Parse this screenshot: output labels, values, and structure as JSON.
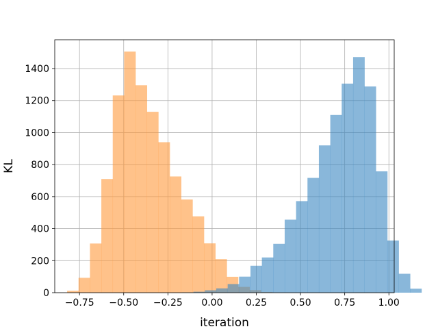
{
  "chart_data": {
    "type": "histogram",
    "title": "",
    "xlabel": "iteration",
    "ylabel": "KL",
    "xlim": [
      -0.89,
      1.03
    ],
    "ylim": [
      0,
      1580
    ],
    "grid": true,
    "legend": "none",
    "x_ticks": [
      -0.75,
      -0.5,
      -0.25,
      0.0,
      0.25,
      0.5,
      0.75,
      1.0
    ],
    "x_tick_labels": [
      "−0.75",
      "−0.50",
      "−0.25",
      "0.00",
      "0.25",
      "0.50",
      "0.75",
      "1.00"
    ],
    "y_ticks": [
      0,
      200,
      400,
      600,
      800,
      1000,
      1200,
      1400
    ],
    "y_tick_labels": [
      "0",
      "200",
      "400",
      "600",
      "800",
      "1000",
      "1200",
      "1400"
    ],
    "series": [
      {
        "color": "#ff9a3c",
        "opacity": 0.6,
        "bin_start": -0.82,
        "bin_width": 0.0645,
        "values": [
          12,
          93,
          307,
          710,
          1232,
          1506,
          1296,
          1130,
          940,
          726,
          582,
          477,
          308,
          209,
          99,
          36,
          16,
          4
        ]
      },
      {
        "color": "#3b87c2",
        "opacity": 0.6,
        "bin_start": -0.17,
        "bin_width": 0.0645,
        "values": [
          2,
          6,
          15,
          27,
          54,
          100,
          168,
          220,
          305,
          456,
          572,
          717,
          920,
          1110,
          1306,
          1472,
          1288,
          758,
          326,
          118,
          25
        ]
      }
    ]
  }
}
